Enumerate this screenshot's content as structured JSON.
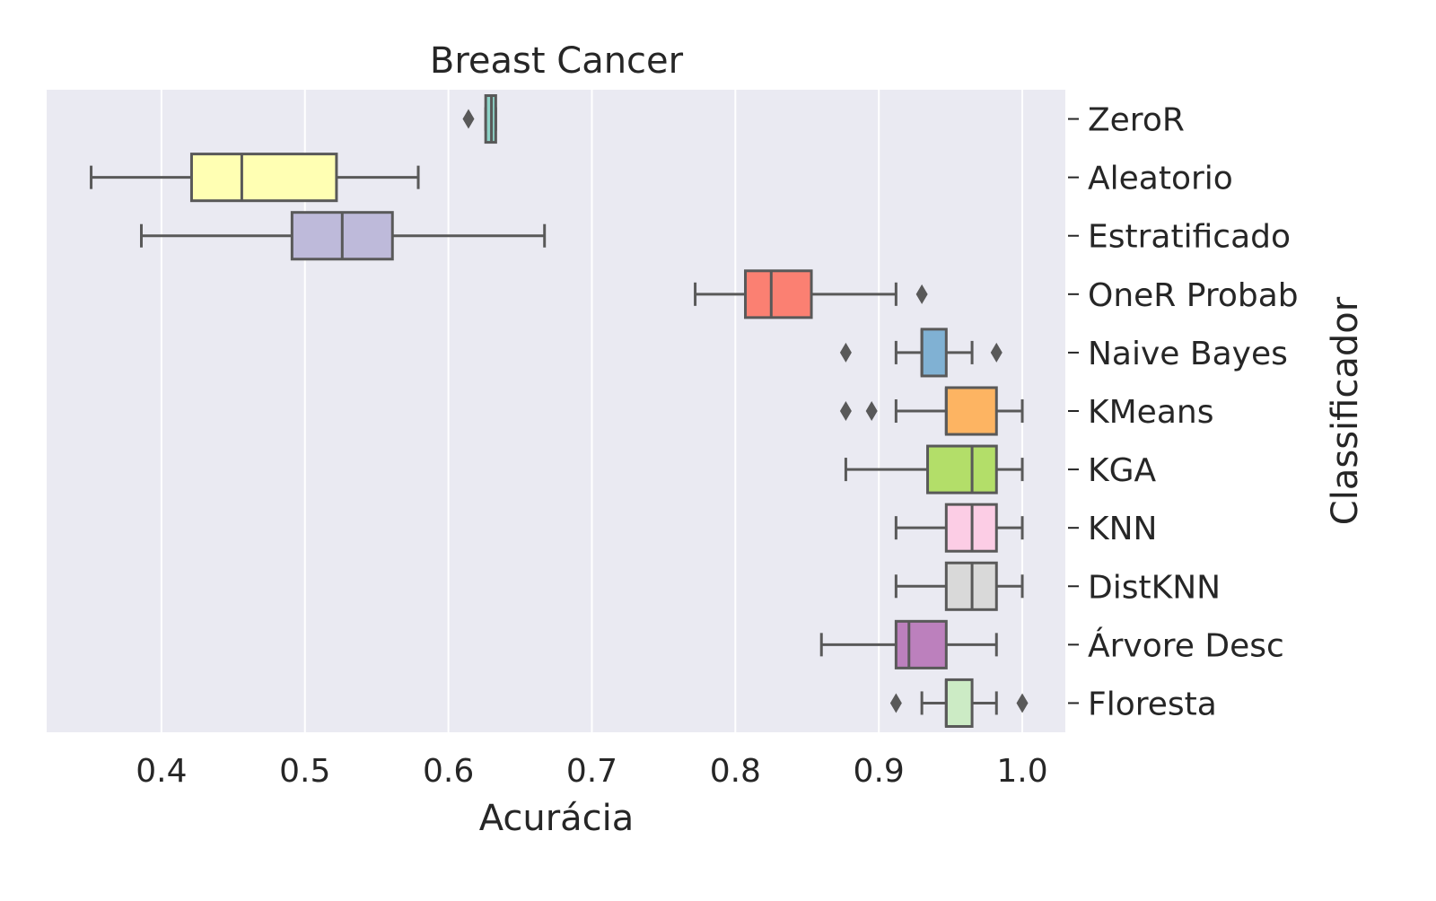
{
  "chart_data": {
    "type": "boxplot",
    "orientation": "horizontal",
    "title": "Breast Cancer",
    "xlabel": "Acurácia",
    "ylabel": "Classificador",
    "xlim": [
      0.32,
      1.03
    ],
    "xticks": [
      "0.4",
      "0.5",
      "0.6",
      "0.7",
      "0.8",
      "0.9",
      "1.0"
    ],
    "grid": true,
    "categories": [
      "ZeroR",
      "Aleatorio",
      "Estratificado",
      "OneR Probab",
      "Naive Bayes",
      "KMeans",
      "KGA",
      "KNN",
      "DistKNN",
      "Árvore Desc",
      "Floresta"
    ],
    "boxes": [
      {
        "label": "ZeroR",
        "whisker_low": 0.626,
        "q1": 0.626,
        "median": 0.63,
        "q3": 0.633,
        "whisker_high": 0.633,
        "outliers": [
          0.614
        ],
        "color": "#8dd3c7"
      },
      {
        "label": "Aleatorio",
        "whisker_low": 0.351,
        "q1": 0.421,
        "median": 0.456,
        "q3": 0.522,
        "whisker_high": 0.579,
        "outliers": [],
        "color": "#ffffb3"
      },
      {
        "label": "Estratificado",
        "whisker_low": 0.386,
        "q1": 0.491,
        "median": 0.526,
        "q3": 0.561,
        "whisker_high": 0.667,
        "outliers": [],
        "color": "#bebada"
      },
      {
        "label": "OneR Probab",
        "whisker_low": 0.772,
        "q1": 0.807,
        "median": 0.825,
        "q3": 0.853,
        "whisker_high": 0.912,
        "outliers": [
          0.93
        ],
        "color": "#fb8072"
      },
      {
        "label": "Naive Bayes",
        "whisker_low": 0.912,
        "q1": 0.93,
        "median": 0.93,
        "q3": 0.947,
        "whisker_high": 0.965,
        "outliers": [
          0.877,
          0.982
        ],
        "color": "#80b1d3"
      },
      {
        "label": "KMeans",
        "whisker_low": 0.912,
        "q1": 0.947,
        "median": 0.947,
        "q3": 0.982,
        "whisker_high": 1.0,
        "outliers": [
          0.877,
          0.895
        ],
        "color": "#fdb462"
      },
      {
        "label": "KGA",
        "whisker_low": 0.877,
        "q1": 0.934,
        "median": 0.965,
        "q3": 0.982,
        "whisker_high": 1.0,
        "outliers": [],
        "color": "#b3de69"
      },
      {
        "label": "KNN",
        "whisker_low": 0.912,
        "q1": 0.947,
        "median": 0.965,
        "q3": 0.982,
        "whisker_high": 1.0,
        "outliers": [],
        "color": "#fccde5"
      },
      {
        "label": "DistKNN",
        "whisker_low": 0.912,
        "q1": 0.947,
        "median": 0.965,
        "q3": 0.982,
        "whisker_high": 1.0,
        "outliers": [],
        "color": "#d9d9d9"
      },
      {
        "label": "Árvore Desc",
        "whisker_low": 0.86,
        "q1": 0.912,
        "median": 0.921,
        "q3": 0.947,
        "whisker_high": 0.982,
        "outliers": [],
        "color": "#bc80bd"
      },
      {
        "label": "Floresta",
        "whisker_low": 0.93,
        "q1": 0.947,
        "median": 0.947,
        "q3": 0.965,
        "whisker_high": 0.982,
        "outliers": [
          0.912,
          1.0
        ],
        "color": "#ccebc5"
      }
    ],
    "colors": {
      "background": "#eaeaf2",
      "grid": "#ffffff",
      "line": "#595959"
    }
  }
}
